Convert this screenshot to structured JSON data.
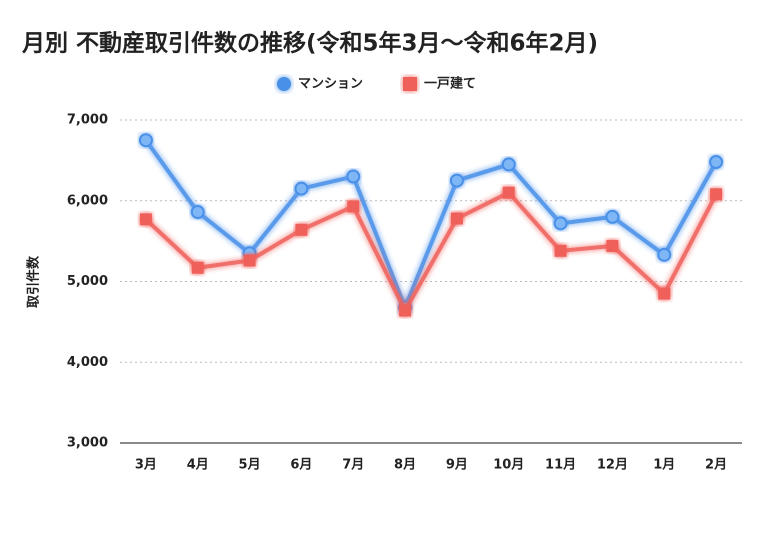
{
  "chart_data": {
    "type": "line",
    "title": "月別 不動産取引件数の推移(令和5年3月〜令和6年2月)",
    "y_label": "取引件数",
    "categories": [
      "3月",
      "4月",
      "5月",
      "6月",
      "7月",
      "8月",
      "9月",
      "10月",
      "11月",
      "12月",
      "1月",
      "2月"
    ],
    "series": [
      {
        "name": "マンション",
        "color": "#4a90e8",
        "marker": "circle",
        "values": [
          6750,
          5860,
          5350,
          6150,
          6300,
          4680,
          6250,
          6450,
          5720,
          5800,
          5330,
          6480
        ]
      },
      {
        "name": "一戸建て",
        "color": "#f0605a",
        "marker": "square",
        "values": [
          5770,
          5170,
          5260,
          5640,
          5930,
          4640,
          5780,
          6100,
          5380,
          5440,
          4850,
          6080
        ]
      }
    ],
    "ylim": [
      3000,
      7000
    ],
    "yticks": [
      {
        "value": 3000,
        "label": "3,000"
      },
      {
        "value": 4000,
        "label": "4,000"
      },
      {
        "value": 5000,
        "label": "5,000"
      },
      {
        "value": 6000,
        "label": "6,000"
      },
      {
        "value": 7000,
        "label": "7,000"
      }
    ],
    "grid": true,
    "legend": "top"
  }
}
